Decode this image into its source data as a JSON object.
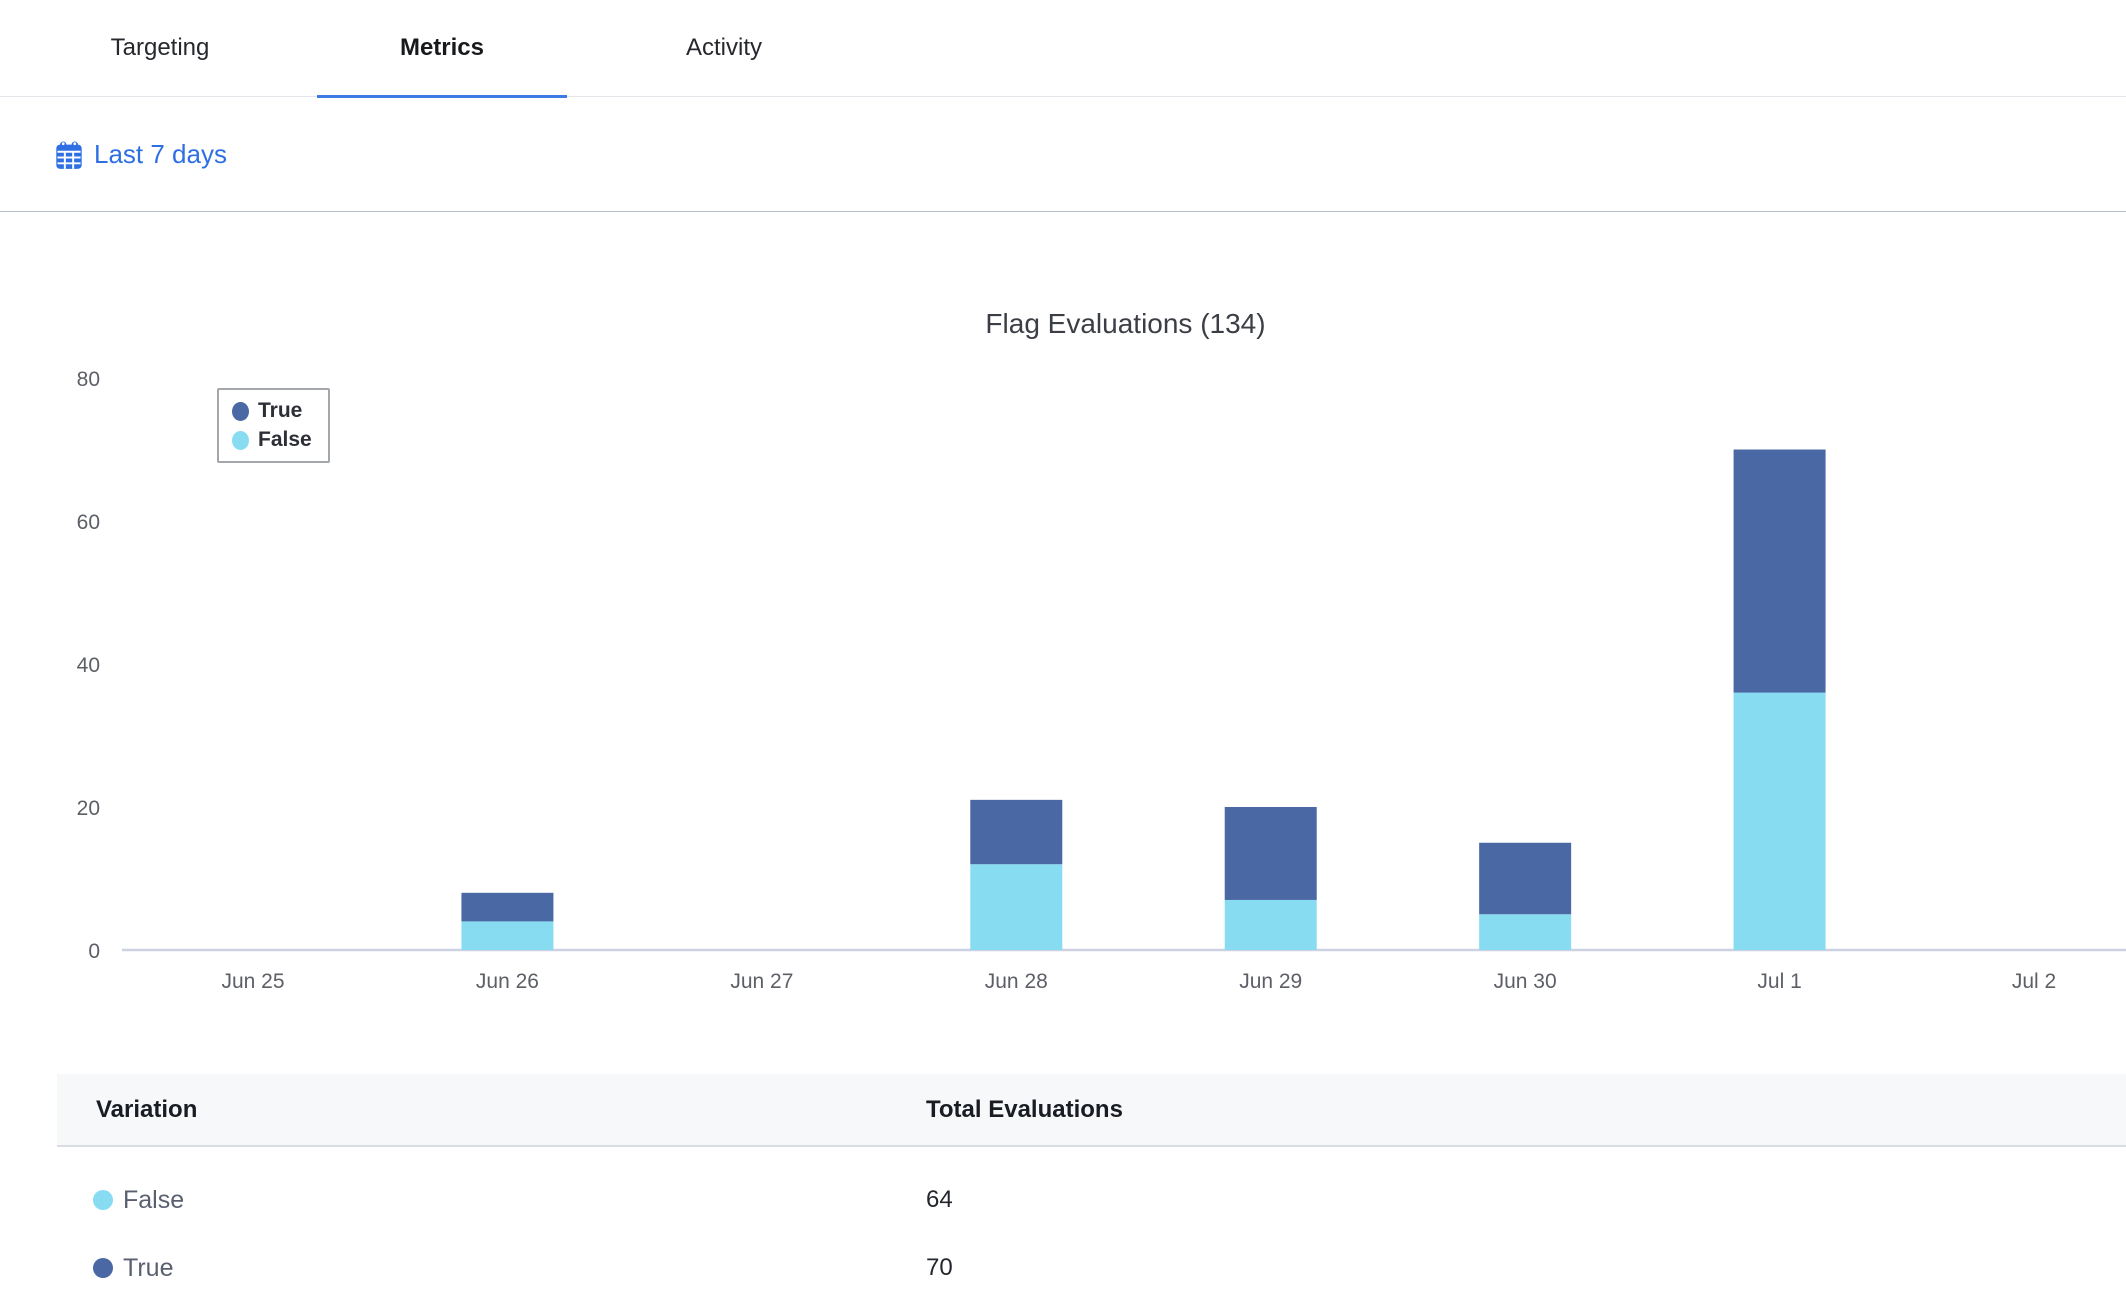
{
  "tabs": [
    {
      "label": "Targeting",
      "active": false
    },
    {
      "label": "Metrics",
      "active": true
    },
    {
      "label": "Activity",
      "active": false
    }
  ],
  "filter": {
    "date_range_label": "Last 7 days",
    "icon": "calendar-icon"
  },
  "chart_data": {
    "type": "bar",
    "stacked": true,
    "title": "Flag Evaluations (134)",
    "total_evaluations": 134,
    "categories": [
      "Jun 25",
      "Jun 26",
      "Jun 27",
      "Jun 28",
      "Jun 29",
      "Jun 30",
      "Jul 1",
      "Jul 2"
    ],
    "series": [
      {
        "name": "True",
        "color": "#4a68a4",
        "values": [
          0,
          4,
          0,
          9,
          13,
          10,
          34,
          0
        ]
      },
      {
        "name": "False",
        "color": "#87dcf2",
        "values": [
          0,
          4,
          0,
          12,
          7,
          5,
          36,
          0
        ]
      }
    ],
    "stack_order_bottom_to_top": [
      "False",
      "True"
    ],
    "ylim": [
      0,
      80
    ],
    "yticks": [
      0,
      20,
      40,
      60,
      80
    ],
    "grid": false,
    "legend_position": "top-left"
  },
  "table": {
    "headers": [
      "Variation",
      "Total Evaluations"
    ],
    "rows": [
      {
        "label": "False",
        "color": "#87dcf2",
        "total": "64"
      },
      {
        "label": "True",
        "color": "#4a68a4",
        "total": "70"
      }
    ]
  },
  "colors": {
    "accent": "#2f6fe4",
    "tab_underline": "#3d7ae3",
    "axis_line": "#ccd2e3",
    "axis_label": "#5c5f66"
  }
}
